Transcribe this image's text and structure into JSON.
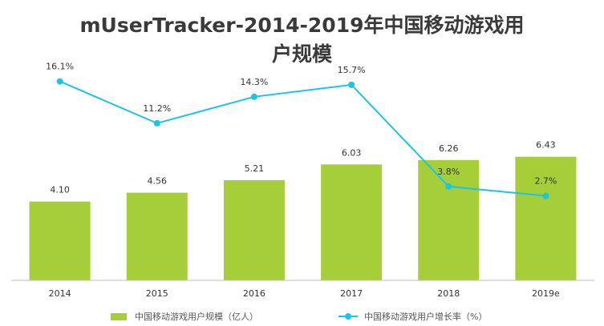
{
  "chart_data": {
    "type": "bar+line",
    "title": "mUserTracker-2014-2019年中国移动游戏用户规模",
    "title_lines": [
      "mUserTracker-2014-2019年中国移动游戏用",
      "户规模"
    ],
    "categories": [
      "2014",
      "2015",
      "2016",
      "2017",
      "2018",
      "2019e"
    ],
    "series": [
      {
        "name": "中国移动游戏用户规模（亿人）",
        "type": "bar",
        "values": [
          4.1,
          4.56,
          5.21,
          6.03,
          6.26,
          6.43
        ],
        "labels": [
          "4.10",
          "4.56",
          "5.21",
          "6.03",
          "6.26",
          "6.43"
        ],
        "color": "#a6ce39"
      },
      {
        "name": "中国移动游戏用户增长率（%）",
        "type": "line",
        "values": [
          16.1,
          11.2,
          14.3,
          15.7,
          3.8,
          2.7
        ],
        "labels": [
          "16.1%",
          "11.2%",
          "14.3%",
          "15.7%",
          "3.8%",
          "2.7%"
        ],
        "color": "#1cc3ea"
      }
    ],
    "bar_ylim": [
      0,
      7
    ],
    "line_ylim": [
      -10,
      20
    ],
    "legend_position": "bottom"
  }
}
